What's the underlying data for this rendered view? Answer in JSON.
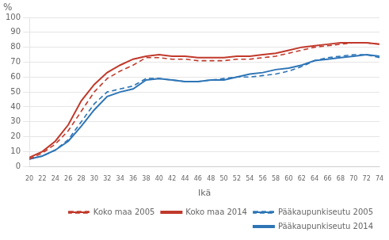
{
  "chart_data": {
    "type": "line",
    "x": [
      20,
      22,
      24,
      26,
      28,
      30,
      32,
      34,
      36,
      38,
      40,
      42,
      44,
      46,
      48,
      50,
      52,
      54,
      56,
      58,
      60,
      62,
      64,
      66,
      68,
      70,
      72,
      74
    ],
    "series": [
      {
        "name": "Koko maa 2005",
        "color": "#c0392b",
        "line_style": "dashed",
        "values": [
          5,
          9,
          15,
          24,
          37,
          50,
          59,
          64,
          68,
          73,
          73,
          72,
          72,
          71,
          71,
          71,
          72,
          72,
          73,
          74,
          76,
          78,
          80,
          81,
          82,
          83,
          83,
          82
        ]
      },
      {
        "name": "Koko maa 2014",
        "color": "#c0392b",
        "line_style": "solid",
        "values": [
          6,
          10,
          17,
          28,
          44,
          55,
          63,
          68,
          72,
          74,
          75,
          74,
          74,
          73,
          73,
          73,
          74,
          74,
          75,
          76,
          78,
          80,
          81,
          82,
          83,
          83,
          83,
          82
        ]
      },
      {
        "name": "Pääkaupunkiseutu 2005",
        "color": "#2e75b6",
        "line_style": "dashed",
        "values": [
          5,
          7,
          11,
          18,
          30,
          42,
          50,
          52,
          54,
          59,
          59,
          58,
          57,
          57,
          58,
          59,
          60,
          60,
          61,
          62,
          64,
          67,
          71,
          73,
          74,
          75,
          75,
          73
        ]
      },
      {
        "name": "Pääkaupunkiseutu 2014",
        "color": "#2e75b6",
        "line_style": "solid",
        "values": [
          5,
          7,
          11,
          17,
          27,
          38,
          47,
          50,
          52,
          58,
          59,
          58,
          57,
          57,
          58,
          58,
          60,
          62,
          63,
          65,
          66,
          68,
          71,
          72,
          73,
          74,
          75,
          74
        ]
      }
    ],
    "xlabel": "Ikä",
    "ylabel": "%",
    "xlim": [
      20,
      74
    ],
    "xticks": [
      20,
      22,
      24,
      26,
      28,
      30,
      32,
      34,
      36,
      38,
      40,
      42,
      44,
      46,
      48,
      50,
      52,
      54,
      56,
      58,
      60,
      62,
      64,
      66,
      68,
      70,
      72,
      74
    ],
    "ylim": [
      0,
      100
    ],
    "yticks": [
      0,
      10,
      20,
      30,
      40,
      50,
      60,
      70,
      80,
      90,
      100
    ],
    "grid": true,
    "legend": "lower right"
  }
}
